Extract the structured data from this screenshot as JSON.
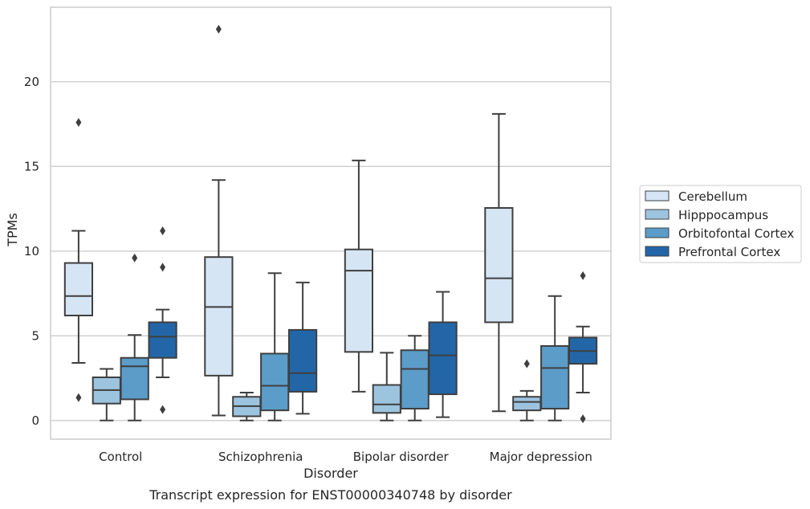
{
  "chart_data": {
    "type": "box",
    "caption": "Transcript expression for ENST00000340748 by disorder",
    "xlabel": "Disorder",
    "ylabel": "TPMs",
    "ylim": [
      -1.1,
      24.4
    ],
    "yticks": [
      0,
      5,
      10,
      15,
      20
    ],
    "grid": "horizontal",
    "legend_position": "right",
    "categories": [
      "Control",
      "Schizophrenia",
      "Bipolar disorder",
      "Major depression"
    ],
    "series": [
      {
        "name": "Cerebellum",
        "color": "#d6e5f4",
        "boxes": [
          {
            "whislo": 3.4,
            "q1": 6.2,
            "med": 7.35,
            "q3": 9.3,
            "whishi": 11.2,
            "fliers": [
              17.6,
              1.35
            ]
          },
          {
            "whislo": 0.3,
            "q1": 2.65,
            "med": 6.7,
            "q3": 9.65,
            "whishi": 14.2,
            "fliers": [
              23.1
            ]
          },
          {
            "whislo": 1.7,
            "q1": 4.05,
            "med": 8.85,
            "q3": 10.1,
            "whishi": 15.35,
            "fliers": []
          },
          {
            "whislo": 0.55,
            "q1": 5.8,
            "med": 8.4,
            "q3": 12.55,
            "whishi": 18.1,
            "fliers": []
          }
        ]
      },
      {
        "name": "Hipppocampus",
        "color": "#9dc4df",
        "boxes": [
          {
            "whislo": 0.0,
            "q1": 1.0,
            "med": 1.8,
            "q3": 2.55,
            "whishi": 3.05,
            "fliers": []
          },
          {
            "whislo": 0.0,
            "q1": 0.25,
            "med": 0.85,
            "q3": 1.4,
            "whishi": 1.65,
            "fliers": []
          },
          {
            "whislo": 0.0,
            "q1": 0.45,
            "med": 0.95,
            "q3": 2.1,
            "whishi": 4.0,
            "fliers": []
          },
          {
            "whislo": 0.0,
            "q1": 0.6,
            "med": 1.1,
            "q3": 1.4,
            "whishi": 1.75,
            "fliers": [
              3.35
            ]
          }
        ]
      },
      {
        "name": "Orbitofontal Cortex",
        "color": "#5b9cc9",
        "boxes": [
          {
            "whislo": 0.0,
            "q1": 1.25,
            "med": 3.2,
            "q3": 3.7,
            "whishi": 5.05,
            "fliers": [
              9.6
            ]
          },
          {
            "whislo": 0.0,
            "q1": 0.6,
            "med": 2.05,
            "q3": 3.95,
            "whishi": 8.7,
            "fliers": []
          },
          {
            "whislo": 0.0,
            "q1": 0.7,
            "med": 3.05,
            "q3": 4.15,
            "whishi": 5.0,
            "fliers": []
          },
          {
            "whislo": 0.0,
            "q1": 0.7,
            "med": 3.1,
            "q3": 4.4,
            "whishi": 7.35,
            "fliers": []
          }
        ]
      },
      {
        "name": "Prefrontal Cortex",
        "color": "#2266a8",
        "boxes": [
          {
            "whislo": 2.55,
            "q1": 3.7,
            "med": 4.95,
            "q3": 5.8,
            "whishi": 6.55,
            "fliers": [
              11.2,
              9.05,
              0.65
            ]
          },
          {
            "whislo": 0.4,
            "q1": 1.7,
            "med": 2.8,
            "q3": 5.35,
            "whishi": 8.15,
            "fliers": []
          },
          {
            "whislo": 0.2,
            "q1": 1.55,
            "med": 3.85,
            "q3": 5.8,
            "whishi": 7.6,
            "fliers": []
          },
          {
            "whislo": 1.65,
            "q1": 3.35,
            "med": 4.1,
            "q3": 4.9,
            "whishi": 5.55,
            "fliers": [
              8.55,
              0.1
            ]
          }
        ]
      }
    ]
  }
}
